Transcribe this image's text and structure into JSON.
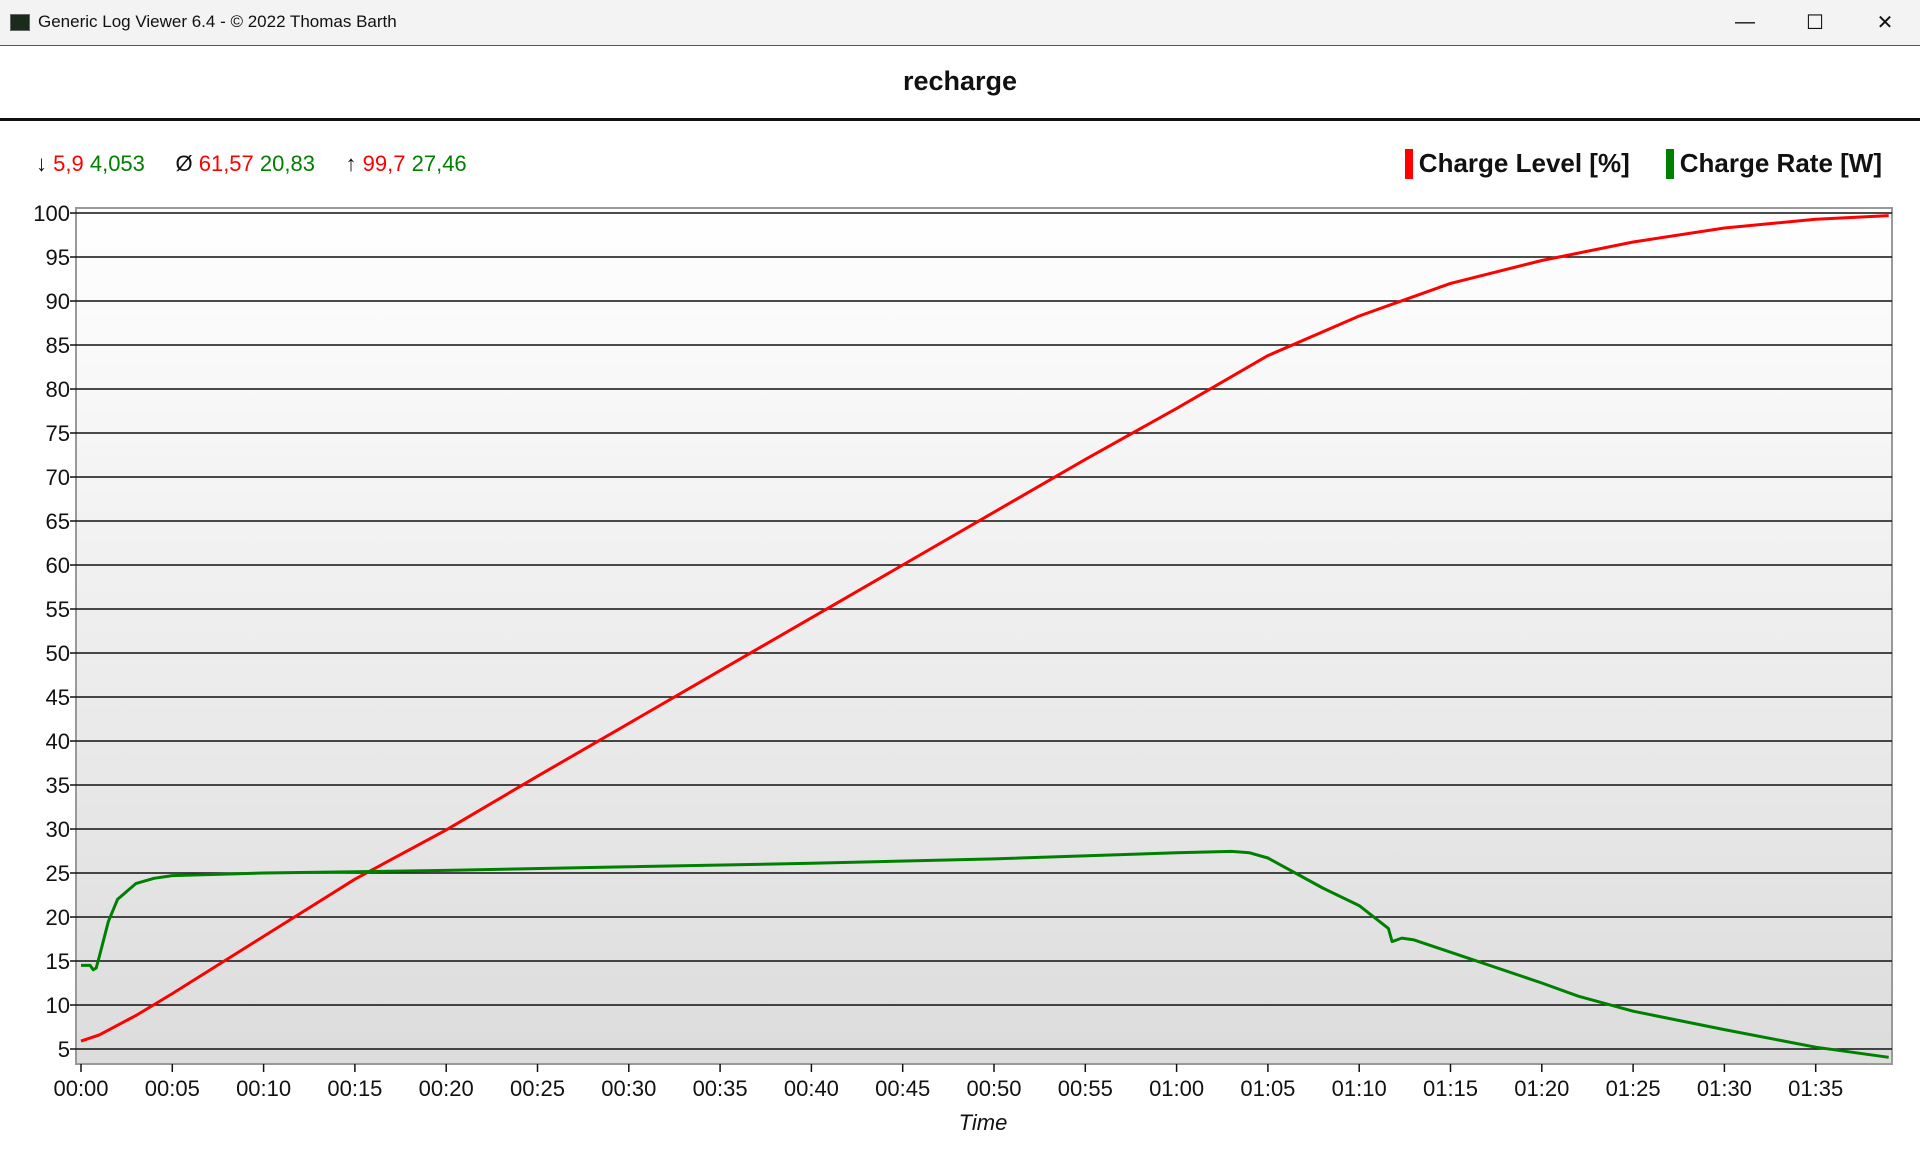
{
  "window": {
    "title": "Generic Log Viewer 6.4 - © 2022 Thomas Barth",
    "minimize": "—",
    "maximize": "☐",
    "close": "✕"
  },
  "stats": {
    "min_symbol": "↓",
    "min_level": "5,9",
    "min_rate": "4,053",
    "avg_symbol": "Ø",
    "avg_level": "61,57",
    "avg_rate": "20,83",
    "max_symbol": "↑",
    "max_level": "99,7",
    "max_rate": "27,46"
  },
  "colors": {
    "level": "#ff0000",
    "rate": "#008000"
  },
  "chart_data": {
    "type": "line",
    "title": "recharge",
    "xlabel": "Time",
    "ylabel": "",
    "xlim_minutes": [
      0,
      99
    ],
    "ylim": [
      3.3,
      100.7
    ],
    "grid": true,
    "legend_placement": "top-right",
    "yticks": [
      100,
      95,
      90,
      85,
      80,
      75,
      70,
      65,
      60,
      55,
      50,
      45,
      40,
      35,
      30,
      25,
      20,
      15,
      10,
      5
    ],
    "xticks": [
      "00:00",
      "00:05",
      "00:10",
      "00:15",
      "00:20",
      "00:25",
      "00:30",
      "00:35",
      "00:40",
      "00:45",
      "00:50",
      "00:55",
      "01:00",
      "01:05",
      "01:10",
      "01:15",
      "01:20",
      "01:25",
      "01:30",
      "01:35"
    ],
    "series": [
      {
        "name": "Charge Level [%]",
        "color": "#ff0000",
        "points": [
          [
            "00:00",
            5.9
          ],
          [
            "00:01",
            6.6
          ],
          [
            "00:03",
            8.8
          ],
          [
            "00:05",
            11.3
          ],
          [
            "00:10",
            17.8
          ],
          [
            "00:15",
            24.3
          ],
          [
            "00:20",
            29.9
          ],
          [
            "00:25",
            36
          ],
          [
            "00:30",
            42
          ],
          [
            "00:35",
            48
          ],
          [
            "00:40",
            54
          ],
          [
            "00:45",
            60
          ],
          [
            "00:50",
            66
          ],
          [
            "00:55",
            72
          ],
          [
            "01:00",
            77.8
          ],
          [
            "01:05",
            83.8
          ],
          [
            "01:10",
            88.3
          ],
          [
            "01:15",
            92
          ],
          [
            "01:20",
            94.6
          ],
          [
            "01:25",
            96.7
          ],
          [
            "01:30",
            98.3
          ],
          [
            "01:35",
            99.3
          ],
          [
            "01:39",
            99.7
          ]
        ]
      },
      {
        "name": "Charge Rate [W]",
        "color": "#008000",
        "points": [
          [
            "00:00",
            14.5
          ],
          [
            "00:00:30",
            14.5
          ],
          [
            "00:00:40",
            14
          ],
          [
            "00:00:50",
            14.2
          ],
          [
            "00:01",
            15.5
          ],
          [
            "00:01:30",
            19.5
          ],
          [
            "00:02",
            22
          ],
          [
            "00:03",
            23.8
          ],
          [
            "00:04",
            24.4
          ],
          [
            "00:05",
            24.7
          ],
          [
            "00:10",
            25
          ],
          [
            "00:20",
            25.3
          ],
          [
            "00:30",
            25.7
          ],
          [
            "00:40",
            26.1
          ],
          [
            "00:50",
            26.6
          ],
          [
            "01:00",
            27.3
          ],
          [
            "01:03",
            27.46
          ],
          [
            "01:04",
            27.3
          ],
          [
            "01:05",
            26.7
          ],
          [
            "01:06:30",
            25
          ],
          [
            "01:08",
            23.3
          ],
          [
            "01:10",
            21.3
          ],
          [
            "01:11:36",
            18.7
          ],
          [
            "01:11:48",
            17.2
          ],
          [
            "01:12:20",
            17.6
          ],
          [
            "01:13",
            17.4
          ],
          [
            "01:15",
            16
          ],
          [
            "01:20",
            12.5
          ],
          [
            "01:22",
            11
          ],
          [
            "01:25",
            9.3
          ],
          [
            "01:30",
            7.2
          ],
          [
            "01:35",
            5.2
          ],
          [
            "01:39",
            4.053
          ]
        ]
      }
    ]
  }
}
